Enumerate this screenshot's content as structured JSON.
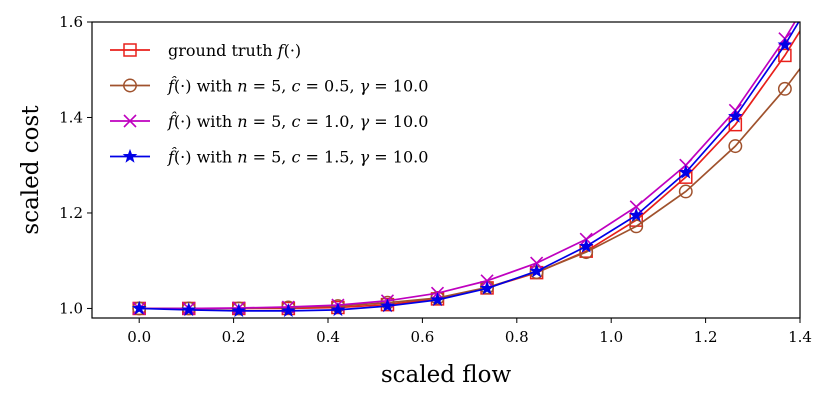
{
  "chart_data": {
    "type": "line",
    "title": "",
    "xlabel": "scaled flow",
    "ylabel": "scaled cost",
    "xlim": [
      -0.1,
      1.4
    ],
    "ylim": [
      0.98,
      1.6
    ],
    "xticks": [
      0.0,
      0.2,
      0.4,
      0.6,
      0.8,
      1.0,
      1.2,
      1.4
    ],
    "yticks": [
      1.0,
      1.2,
      1.4,
      1.6
    ],
    "xtick_labels": [
      "0.0",
      "0.2",
      "0.4",
      "0.6",
      "0.8",
      "1.0",
      "1.2",
      "1.4"
    ],
    "ytick_labels": [
      "1.0",
      "1.2",
      "1.4",
      "1.6"
    ],
    "x": [
      0.0,
      0.105,
      0.211,
      0.316,
      0.421,
      0.526,
      0.632,
      0.737,
      0.842,
      0.947,
      1.053,
      1.158,
      1.263,
      1.368
    ],
    "legend_position": "top-left",
    "series": [
      {
        "name": "ground truth f(·)",
        "label_parts": [
          "ground truth ",
          "f",
          "(·)"
        ],
        "color": "#e8201b",
        "marker": "square",
        "values": [
          1.0,
          1.0,
          1.0,
          1.0,
          1.002,
          1.008,
          1.02,
          1.043,
          1.075,
          1.12,
          1.185,
          1.275,
          1.385,
          1.53
        ]
      },
      {
        "name": "f̂(·) with n = 5, c = 0.5, γ = 10.0",
        "label_parts": [
          "f̂",
          "(·) with ",
          "n",
          " = 5, ",
          "c",
          " = 0.5, ",
          "γ",
          " = 10.0"
        ],
        "color": "#a0522d",
        "marker": "circle",
        "values": [
          1.0,
          1.0,
          1.0,
          1.002,
          1.005,
          1.012,
          1.022,
          1.044,
          1.076,
          1.118,
          1.172,
          1.245,
          1.34,
          1.46
        ]
      },
      {
        "name": "f̂(·) with n = 5, c = 1.0, γ = 10.0",
        "label_parts": [
          "f̂",
          "(·) with ",
          "n",
          " = 5, ",
          "c",
          " = 1.0, ",
          "γ",
          " = 10.0"
        ],
        "color": "#bf00bf",
        "marker": "x",
        "values": [
          1.0,
          1.0,
          1.001,
          1.003,
          1.007,
          1.016,
          1.032,
          1.058,
          1.095,
          1.145,
          1.213,
          1.3,
          1.415,
          1.565
        ]
      },
      {
        "name": "f̂(·) with n = 5, c = 1.5, γ = 10.0",
        "label_parts": [
          "f̂",
          "(·) with ",
          "n",
          " = 5, ",
          "c",
          " = 1.5, ",
          "γ",
          " = 10.0"
        ],
        "color": "#0000e6",
        "marker": "star",
        "values": [
          1.0,
          0.997,
          0.995,
          0.995,
          0.997,
          1.005,
          1.018,
          1.042,
          1.078,
          1.13,
          1.195,
          1.285,
          1.402,
          1.552
        ]
      }
    ]
  }
}
